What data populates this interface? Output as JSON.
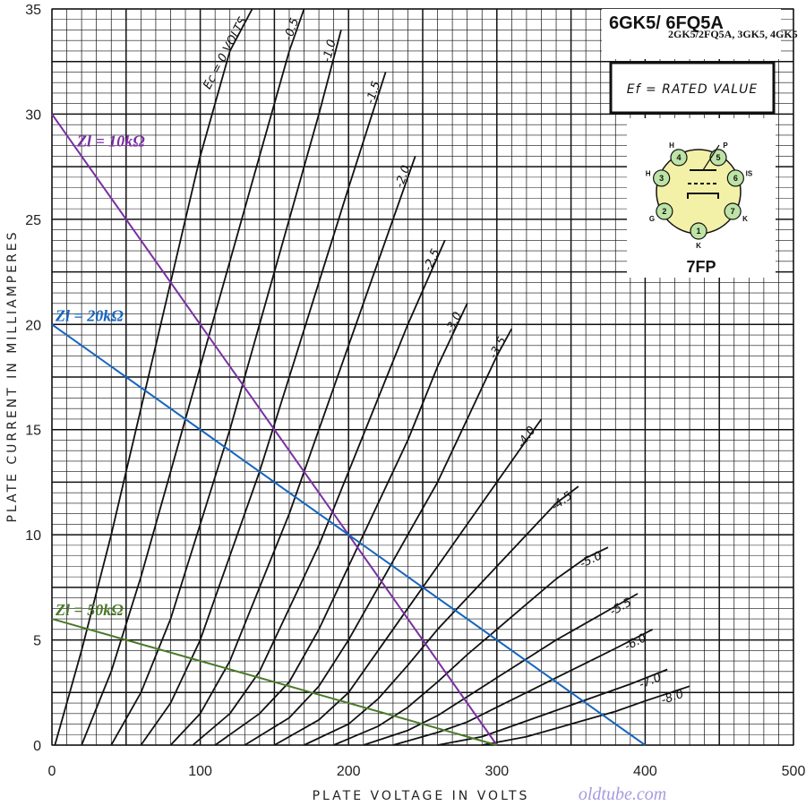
{
  "chart_data": {
    "type": "line",
    "title": "6GK5/ 6FQ5A",
    "subtitle": "2GK5/2FQ5A, 3GK5, 4GK5",
    "xlabel": "PLATE VOLTAGE IN VOLTS",
    "ylabel": "PLATE CURRENT IN MILLIAMPERES",
    "xlim": [
      0,
      500
    ],
    "ylim": [
      0,
      35
    ],
    "xticks": [
      "0",
      "100",
      "200",
      "300",
      "400",
      "500"
    ],
    "yticks": [
      "0",
      "5",
      "10",
      "15",
      "20",
      "25",
      "30",
      "35"
    ],
    "grid": true,
    "curve_label_prefix": "Ec = ",
    "curve_label_suffix": " VOLTS",
    "series": [
      {
        "name": "0",
        "label": "Ec = 0 VOLTS",
        "points": [
          [
            2,
            0
          ],
          [
            10,
            2
          ],
          [
            20,
            4.5
          ],
          [
            40,
            10
          ],
          [
            60,
            16
          ],
          [
            80,
            22
          ],
          [
            100,
            28
          ],
          [
            120,
            33
          ],
          [
            135,
            35
          ]
        ]
      },
      {
        "name": "-0.5",
        "label": "-0.5",
        "points": [
          [
            20,
            0
          ],
          [
            40,
            3.5
          ],
          [
            60,
            8
          ],
          [
            80,
            13
          ],
          [
            100,
            18
          ],
          [
            120,
            23
          ],
          [
            140,
            28
          ],
          [
            160,
            33
          ],
          [
            170,
            35
          ]
        ]
      },
      {
        "name": "-1.0",
        "label": "-1.0",
        "points": [
          [
            40,
            0
          ],
          [
            60,
            2.5
          ],
          [
            80,
            6
          ],
          [
            100,
            10.5
          ],
          [
            120,
            15
          ],
          [
            140,
            20
          ],
          [
            160,
            25
          ],
          [
            180,
            30
          ],
          [
            195,
            34
          ]
        ]
      },
      {
        "name": "-1.5",
        "label": "-1.5",
        "points": [
          [
            60,
            0
          ],
          [
            80,
            2
          ],
          [
            100,
            5
          ],
          [
            120,
            9
          ],
          [
            140,
            13
          ],
          [
            160,
            17.5
          ],
          [
            180,
            22
          ],
          [
            200,
            26.5
          ],
          [
            225,
            32
          ]
        ]
      },
      {
        "name": "-2.0",
        "label": "-2.0",
        "points": [
          [
            80,
            0
          ],
          [
            100,
            1.5
          ],
          [
            120,
            4
          ],
          [
            140,
            7.5
          ],
          [
            160,
            11
          ],
          [
            180,
            15
          ],
          [
            200,
            19
          ],
          [
            220,
            23
          ],
          [
            245,
            28
          ]
        ]
      },
      {
        "name": "-2.5",
        "label": "-2.5",
        "points": [
          [
            95,
            0
          ],
          [
            120,
            1.5
          ],
          [
            140,
            3.5
          ],
          [
            160,
            6.5
          ],
          [
            180,
            9.5
          ],
          [
            200,
            13
          ],
          [
            220,
            16.5
          ],
          [
            240,
            20
          ],
          [
            265,
            24
          ]
        ]
      },
      {
        "name": "-3.0",
        "label": "-3.0",
        "points": [
          [
            110,
            0
          ],
          [
            140,
            1.5
          ],
          [
            160,
            3
          ],
          [
            180,
            5.5
          ],
          [
            200,
            8.5
          ],
          [
            220,
            11.5
          ],
          [
            240,
            14.5
          ],
          [
            260,
            18
          ],
          [
            280,
            21
          ]
        ]
      },
      {
        "name": "-3.5",
        "label": "-3.5",
        "points": [
          [
            130,
            0
          ],
          [
            160,
            1.3
          ],
          [
            180,
            2.8
          ],
          [
            200,
            5
          ],
          [
            220,
            7.5
          ],
          [
            240,
            10
          ],
          [
            260,
            12.5
          ],
          [
            280,
            15.5
          ],
          [
            300,
            18.5
          ],
          [
            310,
            19.8
          ]
        ]
      },
      {
        "name": "-4.0",
        "label": "-4.0",
        "points": [
          [
            150,
            0
          ],
          [
            180,
            1.2
          ],
          [
            200,
            2.5
          ],
          [
            220,
            4.5
          ],
          [
            240,
            6.5
          ],
          [
            260,
            8.5
          ],
          [
            280,
            10.5
          ],
          [
            300,
            12.5
          ],
          [
            320,
            14.5
          ],
          [
            330,
            15.5
          ]
        ]
      },
      {
        "name": "-4.5",
        "label": "-4.5",
        "points": [
          [
            170,
            0
          ],
          [
            200,
            1
          ],
          [
            220,
            2.2
          ],
          [
            240,
            3.8
          ],
          [
            260,
            5.5
          ],
          [
            280,
            7
          ],
          [
            300,
            8.5
          ],
          [
            320,
            10
          ],
          [
            340,
            11.5
          ],
          [
            355,
            12.3
          ]
        ]
      },
      {
        "name": "-5.0",
        "label": "-5.0",
        "points": [
          [
            190,
            0
          ],
          [
            220,
            0.9
          ],
          [
            240,
            1.8
          ],
          [
            260,
            3
          ],
          [
            280,
            4.3
          ],
          [
            300,
            5.5
          ],
          [
            320,
            6.7
          ],
          [
            340,
            7.9
          ],
          [
            360,
            8.9
          ],
          [
            375,
            9.4
          ]
        ]
      },
      {
        "name": "-5.5",
        "label": "-5.5",
        "points": [
          [
            210,
            0
          ],
          [
            240,
            0.7
          ],
          [
            260,
            1.4
          ],
          [
            280,
            2.3
          ],
          [
            300,
            3.2
          ],
          [
            320,
            4.1
          ],
          [
            340,
            5
          ],
          [
            360,
            5.8
          ],
          [
            380,
            6.6
          ],
          [
            395,
            7.2
          ]
        ]
      },
      {
        "name": "-6.0",
        "label": "-6.0",
        "points": [
          [
            230,
            0
          ],
          [
            260,
            0.6
          ],
          [
            280,
            1.1
          ],
          [
            300,
            1.8
          ],
          [
            320,
            2.5
          ],
          [
            340,
            3.2
          ],
          [
            360,
            3.9
          ],
          [
            380,
            4.6
          ],
          [
            405,
            5.5
          ]
        ]
      },
      {
        "name": "-7.0",
        "label": "-7.0",
        "points": [
          [
            260,
            0
          ],
          [
            290,
            0.4
          ],
          [
            310,
            0.9
          ],
          [
            330,
            1.4
          ],
          [
            350,
            1.9
          ],
          [
            370,
            2.4
          ],
          [
            390,
            2.9
          ],
          [
            415,
            3.6
          ]
        ]
      },
      {
        "name": "-8.0",
        "label": "-8.0",
        "points": [
          [
            290,
            0
          ],
          [
            320,
            0.4
          ],
          [
            340,
            0.8
          ],
          [
            360,
            1.2
          ],
          [
            380,
            1.6
          ],
          [
            400,
            2.1
          ],
          [
            430,
            2.8
          ]
        ]
      }
    ],
    "load_lines": [
      {
        "label": "Zl = 10kΩ",
        "color": "#7a2fa3",
        "from": [
          0,
          30
        ],
        "to": [
          300,
          0
        ]
      },
      {
        "label": "Zl = 20kΩ",
        "color": "#1565c0",
        "from": [
          0,
          20
        ],
        "to": [
          400,
          0
        ]
      },
      {
        "label": "Zl = 50kΩ",
        "color": "#4a7a2a",
        "from": [
          0,
          6
        ],
        "to": [
          300,
          0
        ]
      }
    ],
    "annotations": {
      "ef_note": "Ef = RATED VALUE",
      "base_code": "7FP",
      "watermark": "oldtube.com"
    },
    "base_diagram": {
      "fill_color": "#f3f1a8",
      "pins": [
        {
          "num": "1",
          "label": "K"
        },
        {
          "num": "2",
          "label": "G"
        },
        {
          "num": "3",
          "label": "H"
        },
        {
          "num": "4",
          "label": "H"
        },
        {
          "num": "5",
          "label": "P"
        },
        {
          "num": "6",
          "label": "IS"
        },
        {
          "num": "7",
          "label": "K"
        }
      ]
    }
  }
}
